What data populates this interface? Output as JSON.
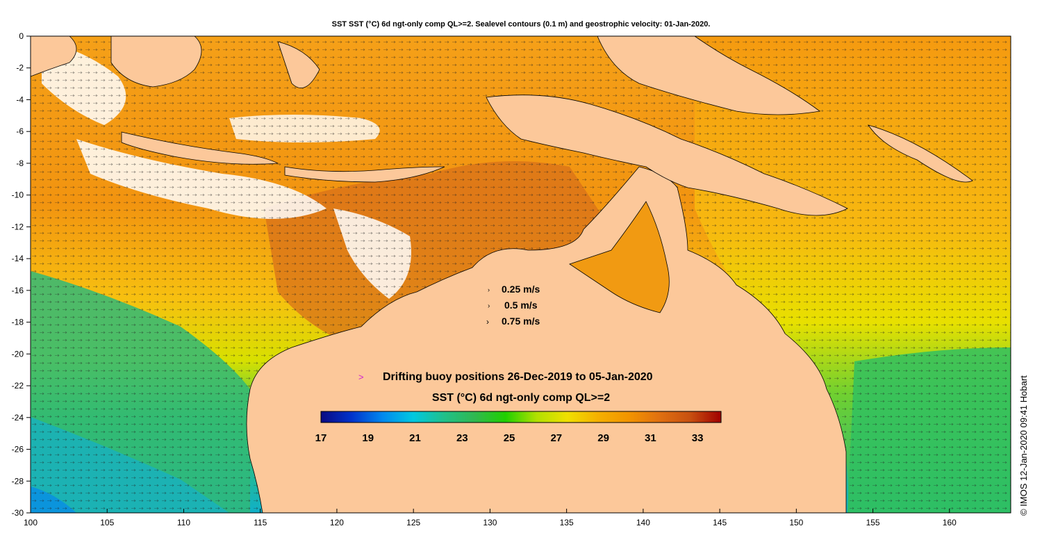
{
  "title": "SST SST (°C) 6d ngt-only comp QL>=2. Sealevel contours (0.1 m) and geostrophic velocity: 01-Jan-2020.",
  "axes": {
    "x_ticks": [
      "100",
      "105",
      "110",
      "115",
      "120",
      "125",
      "130",
      "135",
      "140",
      "145",
      "150",
      "155",
      "160"
    ],
    "y_ticks": [
      "0",
      "-2",
      "-4",
      "-6",
      "-8",
      "-10",
      "-12",
      "-14",
      "-16",
      "-18",
      "-20",
      "-22",
      "-24",
      "-26",
      "-28",
      "-30"
    ],
    "lon_range": [
      100,
      164
    ],
    "lat_range": [
      -30,
      0
    ]
  },
  "velocity_legend": [
    "0.25 m/s",
    "0.5 m/s",
    "0.75 m/s"
  ],
  "buoy_legend": {
    "symbol": ">",
    "label": "Drifting buoy positions 26-Dec-2019 to 05-Jan-2020",
    "symbol_color": "#d020d0"
  },
  "colorbar": {
    "title": "SST (°C) 6d ngt-only comp QL>=2",
    "min": 17,
    "max": 34,
    "tick_labels": [
      "17",
      "19",
      "21",
      "23",
      "25",
      "27",
      "29",
      "31",
      "33"
    ],
    "colors": [
      "#0a0a82",
      "#0033cc",
      "#0088ee",
      "#00c8e0",
      "#20c08a",
      "#30b850",
      "#20d000",
      "#b0e000",
      "#f0e000",
      "#f4b000",
      "#f29400",
      "#e07010",
      "#c85010",
      "#a00000"
    ]
  },
  "credit": "© IMOS 12-Jan-2020 09:41 Hobart",
  "colors": {
    "land": "#fcc89a",
    "ocean_warm": "#f29a10",
    "ocean_cool": "#20c080"
  }
}
